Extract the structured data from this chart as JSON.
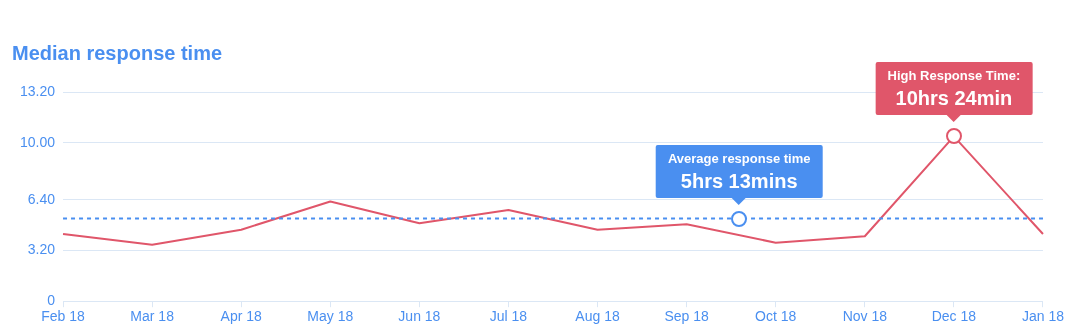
{
  "chart_data": {
    "type": "line",
    "title": "Median response time",
    "categories": [
      "Feb 18",
      "Mar 18",
      "Apr 18",
      "May 18",
      "Jun 18",
      "Jul 18",
      "Aug 18",
      "Sep 18",
      "Oct 18",
      "Nov 18",
      "Dec 18",
      "Jan 18"
    ],
    "series": [
      {
        "color": "#e0566a",
        "values": [
          4.24,
          3.56,
          4.51,
          6.29,
          4.92,
          5.75,
          4.51,
          4.86,
          3.69,
          4.1,
          10.4,
          4.24
        ]
      }
    ],
    "ylim": [
      0,
      13.2
    ],
    "yticks": [
      0,
      {
        "value": 3.2,
        "label": "3.20"
      },
      {
        "value": 6.4,
        "label": "6.40"
      },
      {
        "value": 10,
        "label": "10.00"
      },
      {
        "value": 13.2,
        "label": "13.20"
      }
    ],
    "ref_lines": [
      {
        "axis": "y",
        "value": 5.217,
        "color": "#4a8ff0",
        "line_style": "dashed"
      }
    ],
    "annotations": [
      "High Response Time:",
      "10hrs 24min",
      "Average response time",
      "5hrs 13mins"
    ],
    "grid": "y",
    "legend": false,
    "marker": "none",
    "line_style": "solid"
  }
}
